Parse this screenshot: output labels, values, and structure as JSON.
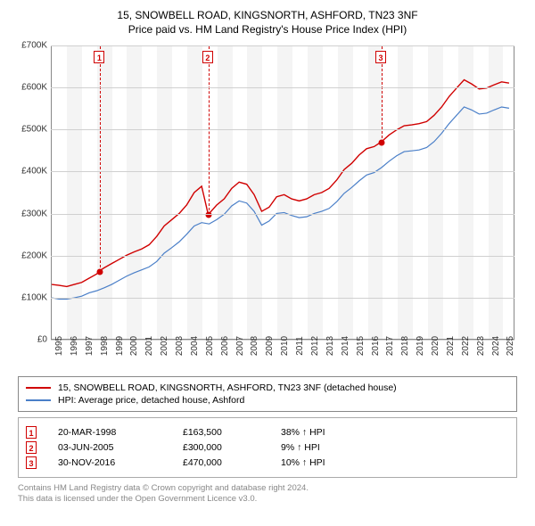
{
  "title_line1": "15, SNOWBELL ROAD, KINGSNORTH, ASHFORD, TN23 3NF",
  "title_line2": "Price paid vs. HM Land Registry's House Price Index (HPI)",
  "chart": {
    "type": "line",
    "background_color": "#ffffff",
    "band_color": "#f4f4f4",
    "grid_color": "#d0d0d0",
    "axis_color": "#888888",
    "y": {
      "min": 0,
      "max": 700000,
      "ticks": [
        0,
        100000,
        200000,
        300000,
        400000,
        500000,
        600000,
        700000
      ],
      "tick_labels": [
        "£0",
        "£100K",
        "£200K",
        "£300K",
        "£400K",
        "£500K",
        "£600K",
        "£700K"
      ],
      "label_fontsize": 10
    },
    "x": {
      "min": 1995,
      "max": 2025.8,
      "ticks": [
        1995,
        1996,
        1997,
        1998,
        1999,
        2000,
        2001,
        2002,
        2003,
        2004,
        2005,
        2006,
        2007,
        2008,
        2009,
        2010,
        2011,
        2012,
        2013,
        2014,
        2015,
        2016,
        2017,
        2018,
        2019,
        2020,
        2021,
        2022,
        2023,
        2024,
        2025
      ],
      "tick_labels": [
        "1995",
        "1996",
        "1997",
        "1998",
        "1999",
        "2000",
        "2001",
        "2002",
        "2003",
        "2004",
        "2005",
        "2006",
        "2007",
        "2008",
        "2009",
        "2010",
        "2011",
        "2012",
        "2013",
        "2014",
        "2015",
        "2016",
        "2017",
        "2018",
        "2019",
        "2020",
        "2021",
        "2022",
        "2023",
        "2024",
        "2025"
      ],
      "label_fontsize": 10,
      "band_width_years": 1
    },
    "series": [
      {
        "name": "15, SNOWBELL ROAD, KINGSNORTH, ASHFORD, TN23 3NF (detached house)",
        "color": "#d00000",
        "line_width": 1.4,
        "points": [
          [
            1995.0,
            130000
          ],
          [
            1995.5,
            128000
          ],
          [
            1996.0,
            125000
          ],
          [
            1996.5,
            130000
          ],
          [
            1997.0,
            135000
          ],
          [
            1997.5,
            145000
          ],
          [
            1998.0,
            155000
          ],
          [
            1998.22,
            163500
          ],
          [
            1998.5,
            170000
          ],
          [
            1999.0,
            180000
          ],
          [
            1999.5,
            190000
          ],
          [
            2000.0,
            200000
          ],
          [
            2000.5,
            208000
          ],
          [
            2001.0,
            215000
          ],
          [
            2001.5,
            225000
          ],
          [
            2002.0,
            245000
          ],
          [
            2002.5,
            270000
          ],
          [
            2003.0,
            285000
          ],
          [
            2003.5,
            300000
          ],
          [
            2004.0,
            320000
          ],
          [
            2004.5,
            350000
          ],
          [
            2005.0,
            365000
          ],
          [
            2005.42,
            300000
          ],
          [
            2005.5,
            300000
          ],
          [
            2006.0,
            320000
          ],
          [
            2006.5,
            335000
          ],
          [
            2007.0,
            360000
          ],
          [
            2007.5,
            375000
          ],
          [
            2008.0,
            370000
          ],
          [
            2008.5,
            345000
          ],
          [
            2009.0,
            305000
          ],
          [
            2009.5,
            315000
          ],
          [
            2010.0,
            340000
          ],
          [
            2010.5,
            345000
          ],
          [
            2011.0,
            335000
          ],
          [
            2011.5,
            330000
          ],
          [
            2012.0,
            335000
          ],
          [
            2012.5,
            345000
          ],
          [
            2013.0,
            350000
          ],
          [
            2013.5,
            360000
          ],
          [
            2014.0,
            380000
          ],
          [
            2014.5,
            405000
          ],
          [
            2015.0,
            420000
          ],
          [
            2015.5,
            440000
          ],
          [
            2016.0,
            455000
          ],
          [
            2016.5,
            460000
          ],
          [
            2016.92,
            470000
          ],
          [
            2017.0,
            472000
          ],
          [
            2017.5,
            488000
          ],
          [
            2018.0,
            500000
          ],
          [
            2018.5,
            510000
          ],
          [
            2019.0,
            512000
          ],
          [
            2019.5,
            515000
          ],
          [
            2020.0,
            520000
          ],
          [
            2020.5,
            535000
          ],
          [
            2021.0,
            555000
          ],
          [
            2021.5,
            580000
          ],
          [
            2022.0,
            600000
          ],
          [
            2022.5,
            620000
          ],
          [
            2023.0,
            610000
          ],
          [
            2023.5,
            598000
          ],
          [
            2024.0,
            600000
          ],
          [
            2024.5,
            608000
          ],
          [
            2025.0,
            615000
          ],
          [
            2025.5,
            612000
          ]
        ]
      },
      {
        "name": "HPI: Average price, detached house, Ashford",
        "color": "#4a7fc8",
        "line_width": 1.2,
        "points": [
          [
            1995.0,
            98000
          ],
          [
            1995.5,
            95000
          ],
          [
            1996.0,
            95000
          ],
          [
            1996.5,
            98000
          ],
          [
            1997.0,
            102000
          ],
          [
            1997.5,
            110000
          ],
          [
            1998.0,
            115000
          ],
          [
            1998.5,
            122000
          ],
          [
            1999.0,
            130000
          ],
          [
            1999.5,
            140000
          ],
          [
            2000.0,
            150000
          ],
          [
            2000.5,
            158000
          ],
          [
            2001.0,
            165000
          ],
          [
            2001.5,
            172000
          ],
          [
            2002.0,
            185000
          ],
          [
            2002.5,
            205000
          ],
          [
            2003.0,
            218000
          ],
          [
            2003.5,
            232000
          ],
          [
            2004.0,
            250000
          ],
          [
            2004.5,
            270000
          ],
          [
            2005.0,
            278000
          ],
          [
            2005.5,
            275000
          ],
          [
            2006.0,
            285000
          ],
          [
            2006.5,
            298000
          ],
          [
            2007.0,
            318000
          ],
          [
            2007.5,
            330000
          ],
          [
            2008.0,
            325000
          ],
          [
            2008.5,
            305000
          ],
          [
            2009.0,
            272000
          ],
          [
            2009.5,
            282000
          ],
          [
            2010.0,
            300000
          ],
          [
            2010.5,
            302000
          ],
          [
            2011.0,
            295000
          ],
          [
            2011.5,
            290000
          ],
          [
            2012.0,
            292000
          ],
          [
            2012.5,
            300000
          ],
          [
            2013.0,
            305000
          ],
          [
            2013.5,
            312000
          ],
          [
            2014.0,
            328000
          ],
          [
            2014.5,
            348000
          ],
          [
            2015.0,
            362000
          ],
          [
            2015.5,
            378000
          ],
          [
            2016.0,
            392000
          ],
          [
            2016.5,
            398000
          ],
          [
            2017.0,
            410000
          ],
          [
            2017.5,
            425000
          ],
          [
            2018.0,
            438000
          ],
          [
            2018.5,
            448000
          ],
          [
            2019.0,
            450000
          ],
          [
            2019.5,
            452000
          ],
          [
            2020.0,
            458000
          ],
          [
            2020.5,
            472000
          ],
          [
            2021.0,
            492000
          ],
          [
            2021.5,
            515000
          ],
          [
            2022.0,
            535000
          ],
          [
            2022.5,
            555000
          ],
          [
            2023.0,
            548000
          ],
          [
            2023.5,
            538000
          ],
          [
            2024.0,
            540000
          ],
          [
            2024.5,
            548000
          ],
          [
            2025.0,
            555000
          ],
          [
            2025.5,
            552000
          ]
        ]
      }
    ],
    "markers": [
      {
        "num": "1",
        "year": 1998.22,
        "value": 163500
      },
      {
        "num": "2",
        "year": 2005.42,
        "value": 300000
      },
      {
        "num": "3",
        "year": 2016.92,
        "value": 470000
      }
    ]
  },
  "legend": {
    "items": [
      {
        "color": "#d00000",
        "label": "15, SNOWBELL ROAD, KINGSNORTH, ASHFORD, TN23 3NF (detached house)"
      },
      {
        "color": "#4a7fc8",
        "label": "HPI: Average price, detached house, Ashford"
      }
    ]
  },
  "events": [
    {
      "num": "1",
      "date": "20-MAR-1998",
      "price": "£163,500",
      "pct": "38% ↑ HPI"
    },
    {
      "num": "2",
      "date": "03-JUN-2005",
      "price": "£300,000",
      "pct": "9% ↑ HPI"
    },
    {
      "num": "3",
      "date": "30-NOV-2016",
      "price": "£470,000",
      "pct": "10% ↑ HPI"
    }
  ],
  "attribution_line1": "Contains HM Land Registry data © Crown copyright and database right 2024.",
  "attribution_line2": "This data is licensed under the Open Government Licence v3.0.",
  "colors": {
    "marker_border": "#d00000",
    "text": "#333333",
    "attribution": "#888888"
  }
}
